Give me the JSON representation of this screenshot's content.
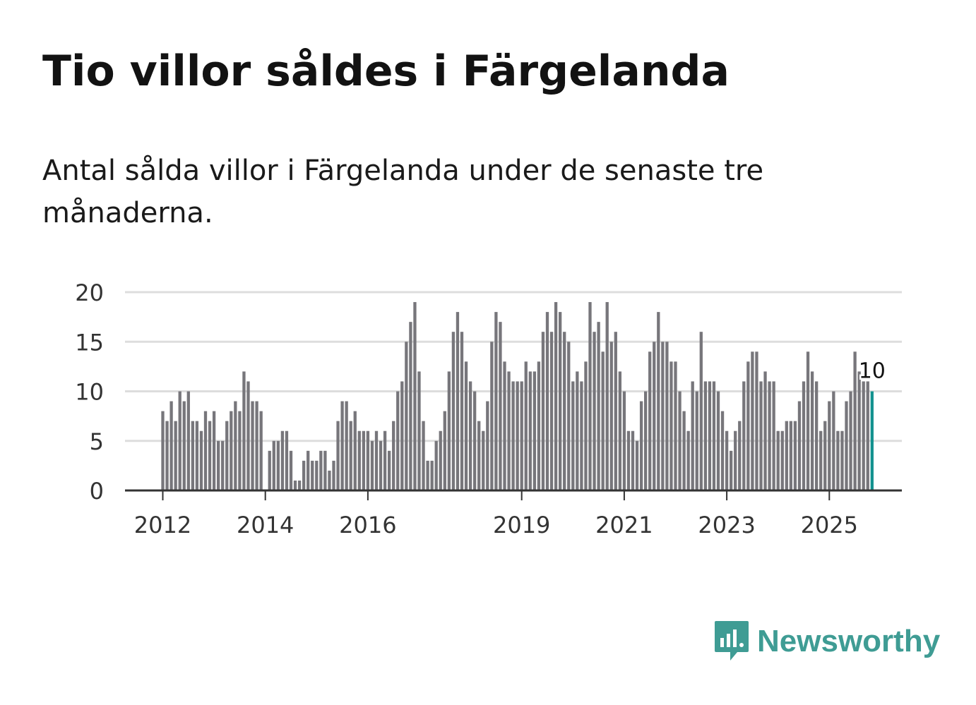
{
  "title": "Tio villor såldes i Färgelanda",
  "subtitle": "Antal sålda villor i Färgelanda under de senaste tre månaderna.",
  "brand": {
    "name": "Newsworthy",
    "icon": "newsworthy-logo-icon",
    "color": "#3f9c94"
  },
  "colors": {
    "bar": "#77767b",
    "highlight": "#12918e",
    "grid": "#dddddd",
    "axis": "#333333"
  },
  "chart_data": {
    "type": "bar",
    "title": "Tio villor såldes i Färgelanda",
    "xlabel": "",
    "ylabel": "",
    "ylim": [
      0,
      20
    ],
    "yticks": [
      0,
      5,
      10,
      15,
      20
    ],
    "x_tick_labels": [
      {
        "label": "2012",
        "index": 0
      },
      {
        "label": "2014",
        "index": 24
      },
      {
        "label": "2016",
        "index": 48
      },
      {
        "label": "2019",
        "index": 84
      },
      {
        "label": "2021",
        "index": 108
      },
      {
        "label": "2023",
        "index": 132
      },
      {
        "label": "2025",
        "index": 156
      }
    ],
    "start": "2012-01",
    "values": [
      8,
      7,
      9,
      7,
      10,
      9,
      10,
      7,
      7,
      6,
      8,
      7,
      8,
      5,
      5,
      7,
      8,
      9,
      8,
      12,
      11,
      9,
      9,
      8,
      0,
      4,
      5,
      5,
      6,
      6,
      4,
      1,
      1,
      3,
      4,
      3,
      3,
      4,
      4,
      2,
      3,
      7,
      9,
      9,
      7,
      8,
      6,
      6,
      6,
      5,
      6,
      5,
      6,
      4,
      7,
      10,
      11,
      15,
      17,
      19,
      12,
      7,
      3,
      3,
      5,
      6,
      8,
      12,
      16,
      18,
      16,
      13,
      11,
      10,
      7,
      6,
      9,
      15,
      18,
      17,
      13,
      12,
      11,
      11,
      11,
      13,
      12,
      12,
      13,
      16,
      18,
      16,
      19,
      18,
      16,
      15,
      11,
      12,
      11,
      13,
      19,
      16,
      17,
      14,
      19,
      15,
      16,
      12,
      10,
      6,
      6,
      5,
      9,
      10,
      14,
      15,
      18,
      15,
      15,
      13,
      13,
      10,
      8,
      6,
      11,
      10,
      16,
      11,
      11,
      11,
      10,
      8,
      6,
      4,
      6,
      7,
      11,
      13,
      14,
      14,
      11,
      12,
      11,
      11,
      6,
      6,
      7,
      7,
      7,
      9,
      11,
      14,
      12,
      11,
      6,
      7,
      9,
      10,
      6,
      6,
      9,
      10,
      14,
      12,
      11,
      11,
      10
    ],
    "highlight_index": 166,
    "annotations": [
      {
        "index": 166,
        "text": "10"
      }
    ]
  }
}
